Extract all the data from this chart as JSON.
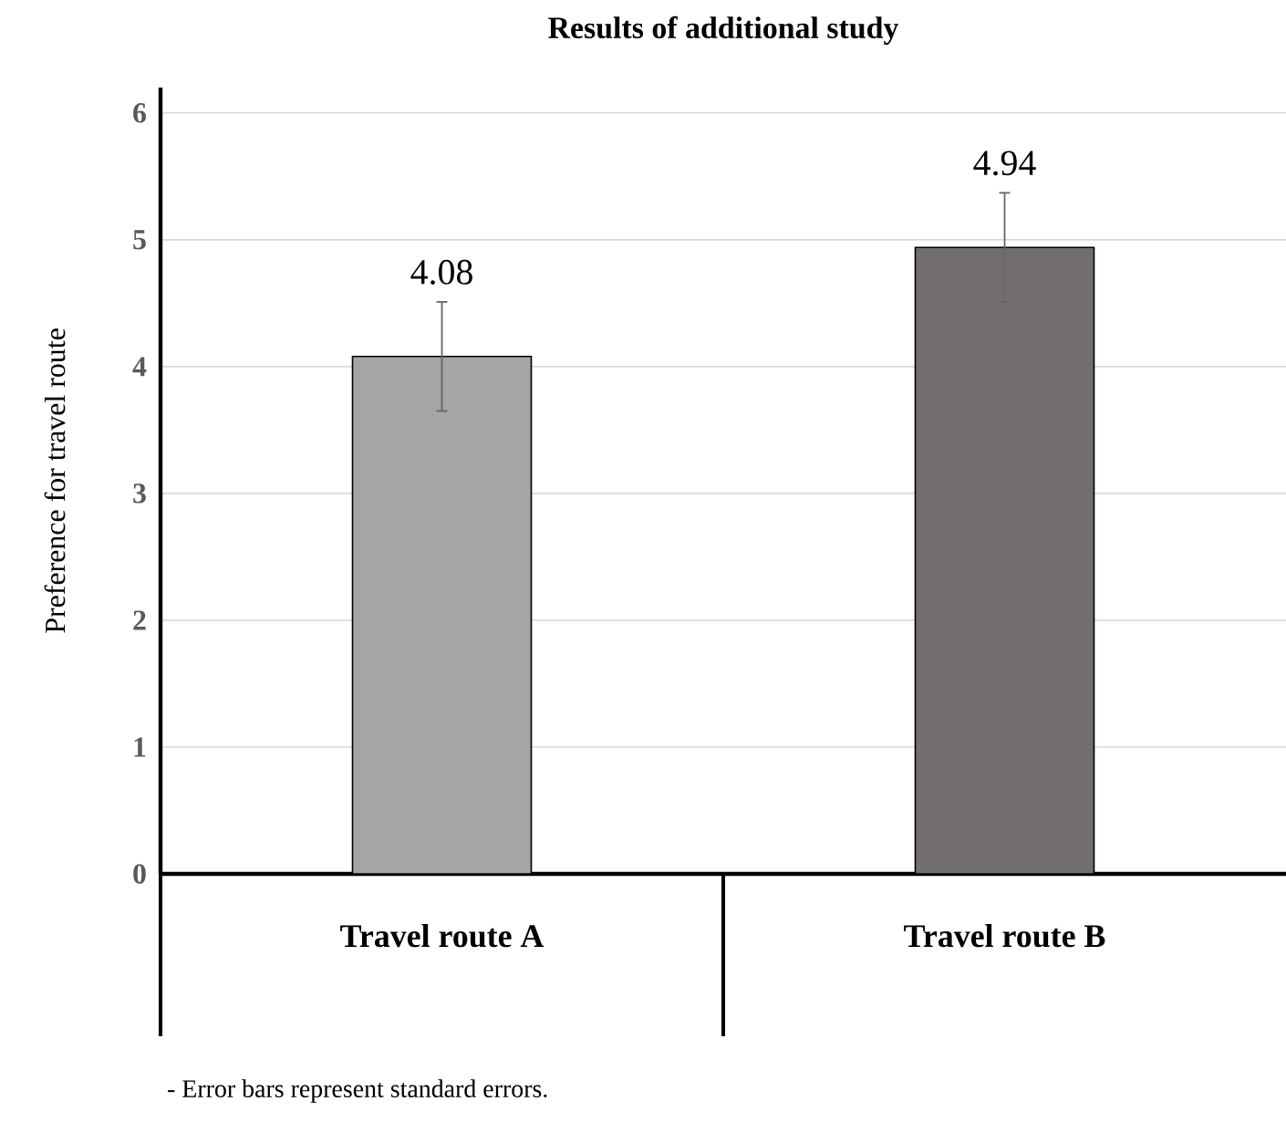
{
  "chart_data": {
    "type": "bar",
    "title": "Results of additional study",
    "ylabel": "Preference for travel route",
    "categories": [
      "Travel route A",
      "Travel route B"
    ],
    "values": [
      4.08,
      4.94
    ],
    "errors": [
      0.43,
      0.43
    ],
    "colors": [
      "#a5a5a5",
      "#726e6d"
    ],
    "data_labels": true,
    "ylim": [
      0,
      6.2
    ],
    "yticks": [
      0,
      1,
      2,
      3,
      4,
      5,
      6
    ],
    "grid": "y",
    "annotations": [
      "- Error bars represent standard errors."
    ]
  }
}
